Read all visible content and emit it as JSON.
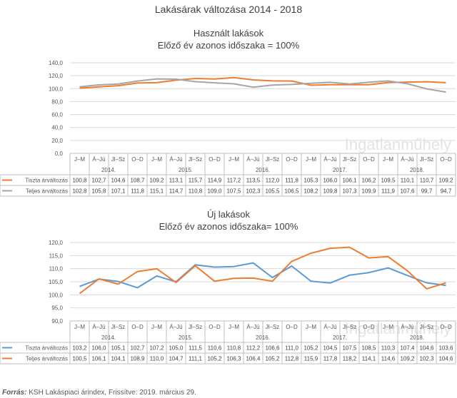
{
  "main_title": "Lakásárak változása 2014 - 2018",
  "source_label": "Forrás:",
  "source_text": "KSH Lakáspiaci árindex, Frissítve: 2019. március 29.",
  "watermark": "Ingatlanműhely",
  "colors": {
    "tiszta": "#ED7D31",
    "teljes": "#A5A5A5",
    "tiszta_uj": "#5B9BD5",
    "teljes_uj": "#ED7D31"
  },
  "chart_data": [
    {
      "type": "line",
      "title": "Használt lakások",
      "subtitle": "Előző év azonos időszaka = 100%",
      "quarters": [
        "J–M",
        "Á–Jú",
        "Jl–Sz",
        "O–D",
        "J–M",
        "Á–Jú",
        "Jl–Sz",
        "O–D",
        "J–M",
        "Á–Jú",
        "Jl–Sz",
        "O–D",
        "J–M",
        "Á–Jú",
        "Jl–Sz",
        "O–D",
        "J–M",
        "Á–Jú",
        "Jl–Sz",
        "O–D"
      ],
      "years": [
        "2014.",
        "2015.",
        "2016.",
        "2017.",
        "2018."
      ],
      "y_ticks": [
        "0,0",
        "20,0",
        "40,0",
        "60,0",
        "80,0",
        "100,0",
        "120,0",
        "140,0"
      ],
      "ylim": [
        0,
        140
      ],
      "series": [
        {
          "name": "Tiszta árváltozás",
          "color": "#ED7D31",
          "values": [
            100.8,
            102.7,
            104.6,
            108.7,
            109.2,
            113.1,
            115.7,
            114.9,
            117.2,
            113.5,
            112.0,
            111.8,
            105.3,
            106.0,
            106.1,
            106.2,
            109.5,
            110.1,
            110.7,
            109.2
          ],
          "labels": [
            "100,8",
            "102,7",
            "104,6",
            "108,7",
            "109,2",
            "113,1",
            "115,7",
            "114,9",
            "117,2",
            "113,5",
            "112,0",
            "111,8",
            "105,3",
            "106,0",
            "106,1",
            "106,2",
            "109,5",
            "110,1",
            "110,7",
            "109,2"
          ]
        },
        {
          "name": "Teljes árváltozás",
          "color": "#A5A5A5",
          "values": [
            102.8,
            105.8,
            107.1,
            111.8,
            115.1,
            114.7,
            110.8,
            109.0,
            107.5,
            102.3,
            105.5,
            106.5,
            108.2,
            109.8,
            107.3,
            109.9,
            111.9,
            107.6,
            99.7,
            94.7
          ],
          "labels": [
            "102,8",
            "105,8",
            "107,1",
            "111,8",
            "115,1",
            "114,7",
            "110,8",
            "109,0",
            "107,5",
            "102,3",
            "105,5",
            "106,5",
            "108,2",
            "109,8",
            "107,3",
            "109,9",
            "111,9",
            "107,6",
            "99,7",
            "94,7"
          ]
        }
      ]
    },
    {
      "type": "line",
      "title": "Új lakások",
      "subtitle": "Előző év azonos időszaka= 100%",
      "quarters": [
        "J–M",
        "Á–Jú",
        "Jl–Sz",
        "O–D",
        "J–M",
        "Á–Jú",
        "Jl–Sz",
        "O–D",
        "J–M",
        "Á–Jú",
        "Jl–Sz",
        "O–D",
        "J–M",
        "Á–Jú",
        "Jl–Sz",
        "O–D",
        "J–M",
        "Á–Jú",
        "Jl–Sz",
        "O–D"
      ],
      "years": [
        "2014.",
        "2015.",
        "2016.",
        "2017.",
        "2018."
      ],
      "y_ticks": [
        "90,0",
        "95,0",
        "100,0",
        "105,0",
        "110,0",
        "115,0",
        "120,0"
      ],
      "ylim": [
        90,
        120
      ],
      "series": [
        {
          "name": "Tiszta árváltozás",
          "color": "#5B9BD5",
          "values": [
            103.2,
            106.0,
            105.1,
            102.7,
            107.2,
            105.0,
            111.5,
            110.6,
            110.8,
            112.2,
            106.6,
            111.0,
            105.2,
            104.5,
            107.5,
            108.5,
            110.3,
            107.4,
            104.6,
            103.6
          ],
          "labels": [
            "103,2",
            "106,0",
            "105,1",
            "102,7",
            "107,2",
            "105,0",
            "111,5",
            "110,6",
            "110,8",
            "112,2",
            "106,6",
            "111,0",
            "105,2",
            "104,5",
            "107,5",
            "108,5",
            "110,3",
            "107,4",
            "104,6",
            "103,6"
          ]
        },
        {
          "name": "Teljes árváltozás",
          "color": "#ED7D31",
          "values": [
            100.5,
            106.1,
            104.1,
            108.9,
            110.0,
            104.7,
            111.1,
            105.2,
            106.3,
            106.4,
            105.2,
            112.8,
            115.9,
            117.8,
            118.2,
            114.1,
            114.6,
            109.2,
            102.3,
            104.6
          ],
          "labels": [
            "100,5",
            "106,1",
            "104,1",
            "108,9",
            "110,0",
            "104,7",
            "111,1",
            "105,2",
            "106,3",
            "106,4",
            "105,2",
            "112,8",
            "115,9",
            "117,8",
            "118,2",
            "114,1",
            "114,6",
            "109,2",
            "102,3",
            "104,6"
          ]
        }
      ]
    }
  ]
}
